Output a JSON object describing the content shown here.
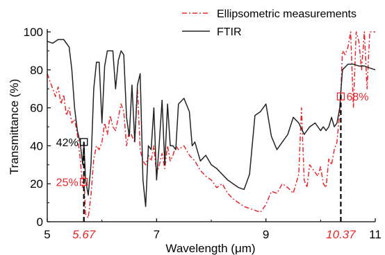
{
  "chart_data": {
    "type": "line",
    "xlabel": "Wavelength (μm)",
    "ylabel": "Transmittance (%)",
    "xlim": [
      5,
      11
    ],
    "ylim": [
      0,
      100
    ],
    "x_ticks": [
      "5",
      "7",
      "9",
      "11"
    ],
    "x_ticks_special": [
      "5.67",
      "10.37"
    ],
    "y_ticks": [
      "0",
      "20",
      "40",
      "60",
      "80",
      "100"
    ],
    "legend_position": "top-right",
    "colors": {
      "ftir": "#222222",
      "ellipsometric": "#e8262b",
      "axis": "#000000"
    },
    "series": [
      {
        "name": "Ellipsometric measurements",
        "style": "dash-dot",
        "x": [
          5.0,
          5.05,
          5.1,
          5.15,
          5.2,
          5.25,
          5.3,
          5.35,
          5.4,
          5.45,
          5.5,
          5.55,
          5.6,
          5.65,
          5.67,
          5.7,
          5.75,
          5.8,
          5.85,
          5.9,
          5.95,
          6.0,
          6.05,
          6.1,
          6.15,
          6.2,
          6.25,
          6.3,
          6.35,
          6.4,
          6.45,
          6.5,
          6.55,
          6.6,
          6.65,
          6.7,
          6.75,
          6.8,
          6.85,
          6.9,
          6.95,
          7.0,
          7.05,
          7.1,
          7.15,
          7.2,
          7.25,
          7.3,
          7.35,
          7.4,
          7.5,
          7.6,
          7.7,
          7.8,
          7.9,
          8.0,
          8.1,
          8.2,
          8.3,
          8.4,
          8.5,
          8.6,
          8.7,
          8.8,
          8.9,
          9.0,
          9.1,
          9.2,
          9.3,
          9.4,
          9.5,
          9.6,
          9.65,
          9.7,
          9.75,
          9.8,
          9.85,
          9.9,
          9.95,
          10.0,
          10.05,
          10.1,
          10.15,
          10.2,
          10.25,
          10.3,
          10.35,
          10.37,
          10.4,
          10.45,
          10.5,
          10.55,
          10.6,
          10.65,
          10.7,
          10.75,
          10.8,
          10.85,
          10.9,
          10.95,
          11.0
        ],
        "y": [
          78,
          74,
          70,
          66,
          71,
          62,
          67,
          56,
          60,
          52,
          54,
          46,
          34,
          18,
          25,
          4,
          2,
          14,
          33,
          40,
          38,
          42,
          52,
          46,
          56,
          50,
          48,
          55,
          62,
          58,
          40,
          48,
          45,
          42,
          70,
          38,
          32,
          30,
          35,
          32,
          40,
          25,
          30,
          36,
          28,
          40,
          32,
          35,
          40,
          38,
          40,
          35,
          32,
          27,
          24,
          22,
          18,
          20,
          15,
          12,
          10,
          8,
          7,
          6,
          5,
          9,
          16,
          15,
          20,
          18,
          15,
          25,
          60,
          22,
          18,
          30,
          28,
          26,
          24,
          29,
          20,
          18,
          33,
          30,
          38,
          42,
          58,
          68,
          90,
          88,
          92,
          100,
          60,
          100,
          95,
          80,
          100,
          70,
          100,
          100,
          100
        ]
      },
      {
        "name": "FTIR",
        "style": "solid",
        "x": [
          5.0,
          5.1,
          5.2,
          5.3,
          5.4,
          5.45,
          5.5,
          5.55,
          5.6,
          5.65,
          5.67,
          5.7,
          5.75,
          5.8,
          5.85,
          5.9,
          5.95,
          6.0,
          6.05,
          6.1,
          6.15,
          6.2,
          6.25,
          6.3,
          6.35,
          6.4,
          6.45,
          6.5,
          6.55,
          6.6,
          6.65,
          6.7,
          6.75,
          6.8,
          6.85,
          6.9,
          6.95,
          7.0,
          7.05,
          7.1,
          7.15,
          7.2,
          7.25,
          7.3,
          7.35,
          7.4,
          7.5,
          7.6,
          7.65,
          7.7,
          7.8,
          7.9,
          8.0,
          8.1,
          8.2,
          8.3,
          8.4,
          8.5,
          8.6,
          8.7,
          8.8,
          8.9,
          9.0,
          9.1,
          9.2,
          9.3,
          9.4,
          9.5,
          9.6,
          9.7,
          9.8,
          9.9,
          10.0,
          10.05,
          10.1,
          10.15,
          10.2,
          10.25,
          10.3,
          10.35,
          10.37,
          10.4,
          10.5,
          10.6,
          10.7,
          10.8,
          10.9,
          11.0
        ],
        "y": [
          95,
          94,
          96,
          96,
          92,
          80,
          60,
          48,
          42,
          30,
          42,
          22,
          14,
          30,
          70,
          84,
          84,
          52,
          82,
          90,
          90,
          90,
          70,
          85,
          90,
          88,
          55,
          45,
          72,
          42,
          72,
          78,
          22,
          8,
          40,
          38,
          60,
          22,
          42,
          64,
          30,
          62,
          40,
          40,
          38,
          62,
          65,
          58,
          40,
          42,
          32,
          35,
          30,
          28,
          25,
          22,
          20,
          18,
          17,
          25,
          56,
          58,
          62,
          45,
          38,
          42,
          46,
          55,
          52,
          46,
          50,
          52,
          48,
          50,
          48,
          50,
          55,
          50,
          52,
          60,
          68,
          80,
          83,
          83,
          82,
          82,
          81,
          80
        ]
      }
    ],
    "annotations": [
      {
        "text": "42%",
        "x": 5.67,
        "y": 42,
        "color": "#000000"
      },
      {
        "text": "25%",
        "x": 5.67,
        "y": 21,
        "color": "#e8262b"
      },
      {
        "text": "68%",
        "x": 10.37,
        "y": 66,
        "color": "#e8262b"
      }
    ]
  }
}
